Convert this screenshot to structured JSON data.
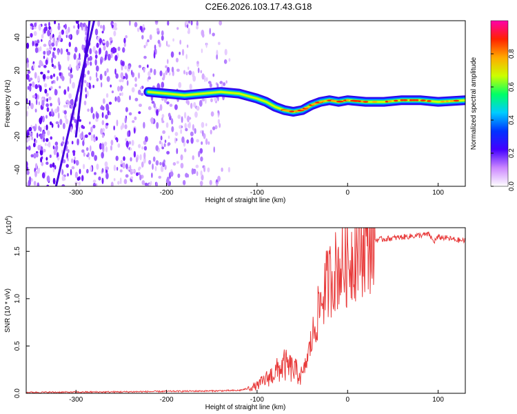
{
  "title": "C2E6.2026.103.17.43.G18",
  "chart_data": [
    {
      "type": "heatmap",
      "xlabel": "Height of straight line (km)",
      "ylabel": "Frequency (Hz)",
      "xlim": [
        -355,
        130
      ],
      "ylim": [
        -50,
        50
      ],
      "xticks": [
        -300,
        -200,
        -100,
        0,
        100
      ],
      "yticks": [
        -40,
        -20,
        0,
        20,
        40
      ],
      "ridge": {
        "x": [
          -220,
          -200,
          -180,
          -160,
          -140,
          -120,
          -100,
          -90,
          -80,
          -70,
          -60,
          -50,
          -40,
          -30,
          -20,
          -10,
          0,
          20,
          40,
          60,
          80,
          100,
          130
        ],
        "frequency": [
          7,
          6,
          5,
          6,
          7,
          6,
          3,
          1,
          -2,
          -4,
          -5,
          -4,
          -1,
          1,
          2,
          1,
          2,
          1,
          1,
          2,
          2,
          1,
          2
        ]
      },
      "colorbar": {
        "label": "Normalized spectral amplitude",
        "range": [
          0.0,
          1.0
        ],
        "ticks": [
          0.0,
          0.2,
          0.4,
          0.6,
          0.8
        ],
        "colors": [
          "#ffffff",
          "#cc88ff",
          "#4400ff",
          "#0033ff",
          "#00ccff",
          "#00ff66",
          "#ccff00",
          "#ffaa00",
          "#ff2200",
          "#ff00aa"
        ]
      }
    },
    {
      "type": "line",
      "xlabel": "Height of straight line (km)",
      "ylabel": "SNR (10 * v/v)",
      "y_exponent": "(x10",
      "y_exponent_power": "4",
      "xlim": [
        -355,
        130
      ],
      "ylim": [
        0,
        1.75
      ],
      "xticks": [
        -300,
        -200,
        -100,
        0,
        100
      ],
      "yticks": [
        0.0,
        0.5,
        1.0,
        1.5
      ],
      "color": "#e83a3a",
      "series": [
        {
          "name": "SNR",
          "x": [
            -355,
            -300,
            -250,
            -200,
            -150,
            -120,
            -110,
            -100,
            -90,
            -80,
            -70,
            -60,
            -50,
            -45,
            -40,
            -35,
            -30,
            -25,
            -20,
            -15,
            -10,
            -5,
            0,
            5,
            10,
            15,
            20,
            25,
            30,
            40,
            50,
            60,
            70,
            80,
            90,
            95,
            100,
            110,
            120,
            130
          ],
          "y": [
            0.01,
            0.012,
            0.015,
            0.02,
            0.025,
            0.03,
            0.05,
            0.08,
            0.15,
            0.22,
            0.3,
            0.25,
            0.18,
            0.35,
            0.55,
            0.75,
            0.95,
            1.1,
            1.2,
            1.28,
            1.33,
            1.35,
            1.38,
            1.45,
            1.5,
            1.55,
            1.58,
            1.6,
            1.62,
            1.63,
            1.64,
            1.65,
            1.66,
            1.67,
            1.68,
            1.6,
            1.65,
            1.64,
            1.62,
            1.61
          ]
        }
      ]
    }
  ]
}
